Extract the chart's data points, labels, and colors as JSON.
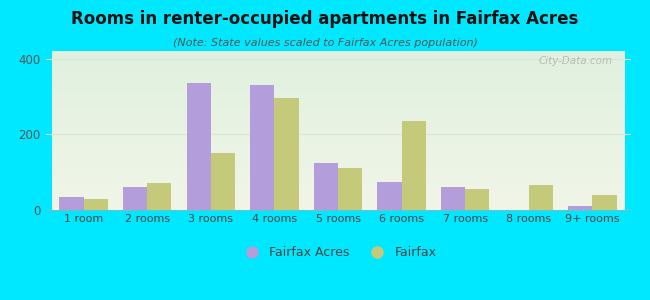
{
  "categories": [
    "1 room",
    "2 rooms",
    "3 rooms",
    "4 rooms",
    "5 rooms",
    "6 rooms",
    "7 rooms",
    "8 rooms",
    "9+ rooms"
  ],
  "fairfax_acres": [
    35,
    62,
    335,
    330,
    125,
    75,
    60,
    0,
    10
  ],
  "fairfax": [
    30,
    72,
    150,
    295,
    110,
    235,
    55,
    65,
    40
  ],
  "color_fa": "#b39ddb",
  "color_fx": "#c5c97a",
  "title": "Rooms in renter-occupied apartments in Fairfax Acres",
  "subtitle": "(Note: State values scaled to Fairfax Acres population)",
  "ylim": [
    0,
    420
  ],
  "yticks": [
    0,
    200,
    400
  ],
  "background_outer": "#00e8ff",
  "legend_fa": "Fairfax Acres",
  "legend_fx": "Fairfax",
  "watermark": "City-Data.com",
  "bar_width": 0.38,
  "grid_color": "#d8e8d0",
  "title_fontsize": 12,
  "subtitle_fontsize": 8
}
